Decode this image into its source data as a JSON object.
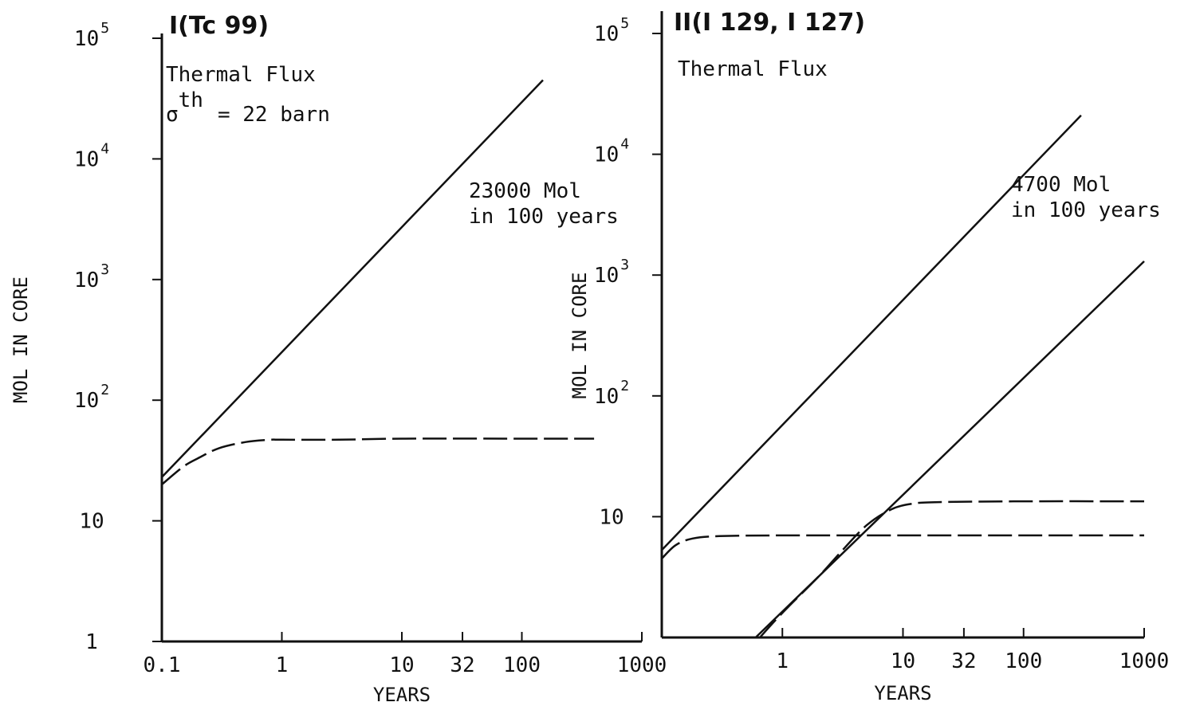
{
  "chart_data": [
    {
      "type": "line",
      "title": "I(Tc 99)",
      "xlabel": "YEARS",
      "ylabel": "MOL IN CORE",
      "x_scale": "log",
      "y_scale": "log",
      "xlim": [
        0.1,
        1000
      ],
      "ylim": [
        1,
        100000
      ],
      "x_ticks": [
        {
          "value": 0.1,
          "label": "0.1"
        },
        {
          "value": 1,
          "label": "1"
        },
        {
          "value": 10,
          "label": "10"
        },
        {
          "value": 32,
          "label": "32"
        },
        {
          "value": 100,
          "label": "100"
        },
        {
          "value": 1000,
          "label": "1000"
        }
      ],
      "y_ticks": [
        {
          "value": 1,
          "base": "1",
          "exp": ""
        },
        {
          "value": 10,
          "base": "10",
          "exp": ""
        },
        {
          "value": 100,
          "base": "10",
          "exp": "2"
        },
        {
          "value": 1000,
          "base": "10",
          "exp": "3"
        },
        {
          "value": 10000,
          "base": "10",
          "exp": "4"
        },
        {
          "value": 100000,
          "base": "10",
          "exp": "5"
        }
      ],
      "annotations": [
        {
          "id": "flux",
          "text": "Thermal Flux"
        },
        {
          "id": "sigma",
          "base": "σ",
          "sup": "th",
          "rest": "= 22 barn"
        },
        {
          "id": "amount",
          "lines": [
            "23000 Mol",
            "in 100 years"
          ]
        }
      ],
      "series": [
        {
          "style": "solid",
          "x": [
            0.1,
            150
          ],
          "y": [
            23,
            45000
          ]
        },
        {
          "style": "dashed",
          "x": [
            0.1,
            0.15,
            0.2,
            0.3,
            0.5,
            0.8,
            1,
            3,
            10,
            100,
            400
          ],
          "y": [
            20,
            28,
            33,
            40,
            45,
            47,
            47,
            47,
            48,
            48,
            48
          ]
        }
      ]
    },
    {
      "type": "line",
      "title": "II(I 129, I 127)",
      "xlabel": "YEARS",
      "ylabel": "MOL IN CORE",
      "x_scale": "log",
      "y_scale": "log",
      "xlim": [
        0.1,
        1000
      ],
      "ylim": [
        1,
        100000
      ],
      "x_ticks": [
        {
          "value": 1,
          "label": "1"
        },
        {
          "value": 10,
          "label": "10"
        },
        {
          "value": 32,
          "label": "32"
        },
        {
          "value": 100,
          "label": "100"
        },
        {
          "value": 1000,
          "label": "1000"
        }
      ],
      "y_ticks": [
        {
          "value": 10,
          "base": "10",
          "exp": ""
        },
        {
          "value": 100,
          "base": "10",
          "exp": "2"
        },
        {
          "value": 1000,
          "base": "10",
          "exp": "3"
        },
        {
          "value": 10000,
          "base": "10",
          "exp": "4"
        },
        {
          "value": 100000,
          "base": "10",
          "exp": "5"
        }
      ],
      "annotations": [
        {
          "id": "flux",
          "text": "Thermal Flux"
        },
        {
          "id": "amount",
          "lines": [
            "4700 Mol",
            "in 100 years"
          ]
        }
      ],
      "series": [
        {
          "style": "solid",
          "x": [
            0.1,
            300
          ],
          "y": [
            5.3,
            21000
          ]
        },
        {
          "style": "dashed",
          "x": [
            0.1,
            0.13,
            0.18,
            0.3,
            1,
            10,
            100,
            1000
          ],
          "y": [
            4.5,
            5.8,
            6.6,
            6.9,
            7,
            7,
            7,
            7
          ]
        },
        {
          "style": "solid",
          "x": [
            0.6,
            1000
          ],
          "y": [
            1,
            1300
          ]
        },
        {
          "style": "dashed",
          "x": [
            0.65,
            1,
            2,
            3,
            5,
            8,
            12,
            20,
            100,
            1000
          ],
          "y": [
            1,
            1.6,
            3.2,
            5,
            8.5,
            11.5,
            12.8,
            13.2,
            13.4,
            13.4
          ]
        }
      ]
    }
  ]
}
